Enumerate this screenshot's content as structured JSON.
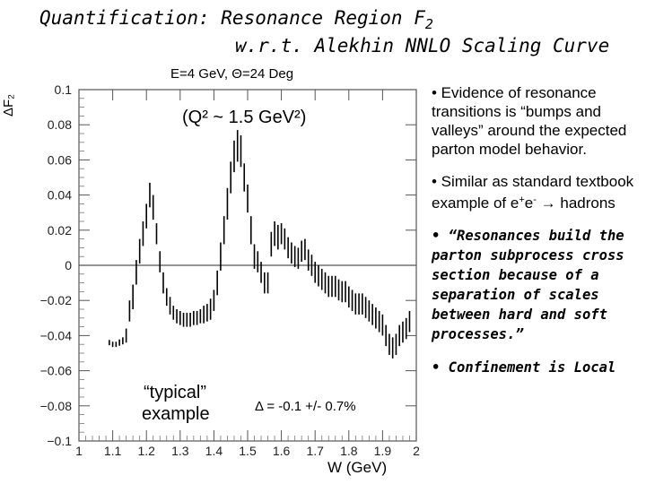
{
  "slide": {
    "title_line1_main": "Quantification: Resonance Region F",
    "title_line1_sub": "2",
    "title_line2": "w.r.t. Alekhin NNLO Scaling Curve"
  },
  "bullets": [
    {
      "text": "• Evidence of resonance transitions is “bumps and valleys” around the expected parton model behavior."
    },
    {
      "pre": "• Similar as standard textbook example of e",
      "sup1": "+",
      "mid": "e",
      "sup2": "-",
      "post": " → hadrons"
    },
    {
      "text": "• “Resonances build the parton subprocess cross section because of a separation of scales between hard and soft processes.”"
    },
    {
      "text": "• Confinement is Local"
    }
  ],
  "chart_data": {
    "type": "scatter",
    "title": "E=4 GeV, Θ=24 Deg",
    "xlabel": "W (GeV)",
    "ylabel": "ΔF₂",
    "xlim": [
      1.0,
      2.0
    ],
    "ylim": [
      -0.1,
      0.1
    ],
    "x_ticks": [
      "1",
      "1.1",
      "1.2",
      "1.3",
      "1.4",
      "1.5",
      "1.6",
      "1.7",
      "1.8",
      "1.9",
      "2"
    ],
    "y_ticks": [
      "0.1",
      "0.08",
      "0.06",
      "0.04",
      "0.02",
      "0",
      "−0.02",
      "−0.04",
      "−0.06",
      "−0.08",
      "−0.1"
    ],
    "annotations": {
      "q2": "(Q² ~ 1.5 GeV²)",
      "typical_line1": "“typical”",
      "typical_line2": "example",
      "delta": "Δ = -0.1 +/- 0.7%"
    },
    "points": [
      {
        "x": 1.09,
        "y": -0.044,
        "err": 0.0015
      },
      {
        "x": 1.1,
        "y": -0.045,
        "err": 0.0015
      },
      {
        "x": 1.11,
        "y": -0.045,
        "err": 0.0015
      },
      {
        "x": 1.12,
        "y": -0.044,
        "err": 0.0018
      },
      {
        "x": 1.13,
        "y": -0.043,
        "err": 0.002
      },
      {
        "x": 1.14,
        "y": -0.04,
        "err": 0.004
      },
      {
        "x": 1.15,
        "y": -0.026,
        "err": 0.006
      },
      {
        "x": 1.16,
        "y": -0.018,
        "err": 0.007
      },
      {
        "x": 1.17,
        "y": -0.004,
        "err": 0.007
      },
      {
        "x": 1.18,
        "y": 0.008,
        "err": 0.007
      },
      {
        "x": 1.19,
        "y": 0.018,
        "err": 0.007
      },
      {
        "x": 1.2,
        "y": 0.028,
        "err": 0.007
      },
      {
        "x": 1.21,
        "y": 0.04,
        "err": 0.007
      },
      {
        "x": 1.22,
        "y": 0.033,
        "err": 0.007
      },
      {
        "x": 1.23,
        "y": 0.018,
        "err": 0.006
      },
      {
        "x": 1.24,
        "y": 0.002,
        "err": 0.006
      },
      {
        "x": 1.25,
        "y": -0.01,
        "err": 0.006
      },
      {
        "x": 1.26,
        "y": -0.018,
        "err": 0.005
      },
      {
        "x": 1.27,
        "y": -0.023,
        "err": 0.005
      },
      {
        "x": 1.28,
        "y": -0.027,
        "err": 0.004
      },
      {
        "x": 1.29,
        "y": -0.029,
        "err": 0.004
      },
      {
        "x": 1.3,
        "y": -0.03,
        "err": 0.004
      },
      {
        "x": 1.31,
        "y": -0.031,
        "err": 0.004
      },
      {
        "x": 1.32,
        "y": -0.031,
        "err": 0.004
      },
      {
        "x": 1.33,
        "y": -0.031,
        "err": 0.004
      },
      {
        "x": 1.34,
        "y": -0.03,
        "err": 0.004
      },
      {
        "x": 1.35,
        "y": -0.03,
        "err": 0.004
      },
      {
        "x": 1.36,
        "y": -0.029,
        "err": 0.004
      },
      {
        "x": 1.37,
        "y": -0.028,
        "err": 0.005
      },
      {
        "x": 1.38,
        "y": -0.027,
        "err": 0.005
      },
      {
        "x": 1.39,
        "y": -0.025,
        "err": 0.006
      },
      {
        "x": 1.4,
        "y": -0.02,
        "err": 0.006
      },
      {
        "x": 1.41,
        "y": -0.01,
        "err": 0.007
      },
      {
        "x": 1.42,
        "y": 0.005,
        "err": 0.008
      },
      {
        "x": 1.43,
        "y": 0.02,
        "err": 0.008
      },
      {
        "x": 1.44,
        "y": 0.035,
        "err": 0.009
      },
      {
        "x": 1.45,
        "y": 0.05,
        "err": 0.009
      },
      {
        "x": 1.46,
        "y": 0.062,
        "err": 0.009
      },
      {
        "x": 1.47,
        "y": 0.068,
        "err": 0.009
      },
      {
        "x": 1.48,
        "y": 0.065,
        "err": 0.009
      },
      {
        "x": 1.49,
        "y": 0.05,
        "err": 0.008
      },
      {
        "x": 1.5,
        "y": 0.038,
        "err": 0.008
      },
      {
        "x": 1.51,
        "y": 0.02,
        "err": 0.008
      },
      {
        "x": 1.52,
        "y": 0.005,
        "err": 0.007
      },
      {
        "x": 1.53,
        "y": 0.002,
        "err": 0.006
      },
      {
        "x": 1.54,
        "y": -0.004,
        "err": 0.006
      },
      {
        "x": 1.55,
        "y": -0.01,
        "err": 0.006
      },
      {
        "x": 1.56,
        "y": -0.01,
        "err": 0.006
      },
      {
        "x": 1.57,
        "y": 0.012,
        "err": 0.007
      },
      {
        "x": 1.58,
        "y": 0.018,
        "err": 0.007
      },
      {
        "x": 1.59,
        "y": 0.016,
        "err": 0.007
      },
      {
        "x": 1.6,
        "y": 0.018,
        "err": 0.006
      },
      {
        "x": 1.61,
        "y": 0.015,
        "err": 0.006
      },
      {
        "x": 1.62,
        "y": 0.01,
        "err": 0.006
      },
      {
        "x": 1.63,
        "y": 0.007,
        "err": 0.006
      },
      {
        "x": 1.64,
        "y": 0.005,
        "err": 0.006
      },
      {
        "x": 1.65,
        "y": 0.004,
        "err": 0.006
      },
      {
        "x": 1.66,
        "y": 0.008,
        "err": 0.006
      },
      {
        "x": 1.67,
        "y": 0.009,
        "err": 0.006
      },
      {
        "x": 1.68,
        "y": 0.003,
        "err": 0.006
      },
      {
        "x": 1.69,
        "y": 0.0,
        "err": 0.006
      },
      {
        "x": 1.7,
        "y": -0.004,
        "err": 0.006
      },
      {
        "x": 1.71,
        "y": -0.006,
        "err": 0.006
      },
      {
        "x": 1.72,
        "y": -0.008,
        "err": 0.006
      },
      {
        "x": 1.73,
        "y": -0.01,
        "err": 0.006
      },
      {
        "x": 1.74,
        "y": -0.012,
        "err": 0.006
      },
      {
        "x": 1.75,
        "y": -0.012,
        "err": 0.006
      },
      {
        "x": 1.76,
        "y": -0.012,
        "err": 0.006
      },
      {
        "x": 1.77,
        "y": -0.014,
        "err": 0.006
      },
      {
        "x": 1.78,
        "y": -0.015,
        "err": 0.006
      },
      {
        "x": 1.79,
        "y": -0.015,
        "err": 0.006
      },
      {
        "x": 1.8,
        "y": -0.018,
        "err": 0.006
      },
      {
        "x": 1.81,
        "y": -0.02,
        "err": 0.006
      },
      {
        "x": 1.82,
        "y": -0.022,
        "err": 0.006
      },
      {
        "x": 1.83,
        "y": -0.022,
        "err": 0.006
      },
      {
        "x": 1.84,
        "y": -0.022,
        "err": 0.006
      },
      {
        "x": 1.85,
        "y": -0.024,
        "err": 0.006
      },
      {
        "x": 1.86,
        "y": -0.026,
        "err": 0.006
      },
      {
        "x": 1.87,
        "y": -0.028,
        "err": 0.006
      },
      {
        "x": 1.88,
        "y": -0.03,
        "err": 0.006
      },
      {
        "x": 1.89,
        "y": -0.032,
        "err": 0.006
      },
      {
        "x": 1.9,
        "y": -0.034,
        "err": 0.006
      },
      {
        "x": 1.91,
        "y": -0.04,
        "err": 0.006
      },
      {
        "x": 1.92,
        "y": -0.045,
        "err": 0.006
      },
      {
        "x": 1.93,
        "y": -0.047,
        "err": 0.006
      },
      {
        "x": 1.94,
        "y": -0.045,
        "err": 0.006
      },
      {
        "x": 1.95,
        "y": -0.04,
        "err": 0.006
      },
      {
        "x": 1.96,
        "y": -0.038,
        "err": 0.006
      },
      {
        "x": 1.97,
        "y": -0.036,
        "err": 0.006
      },
      {
        "x": 1.98,
        "y": -0.032,
        "err": 0.006
      }
    ]
  }
}
